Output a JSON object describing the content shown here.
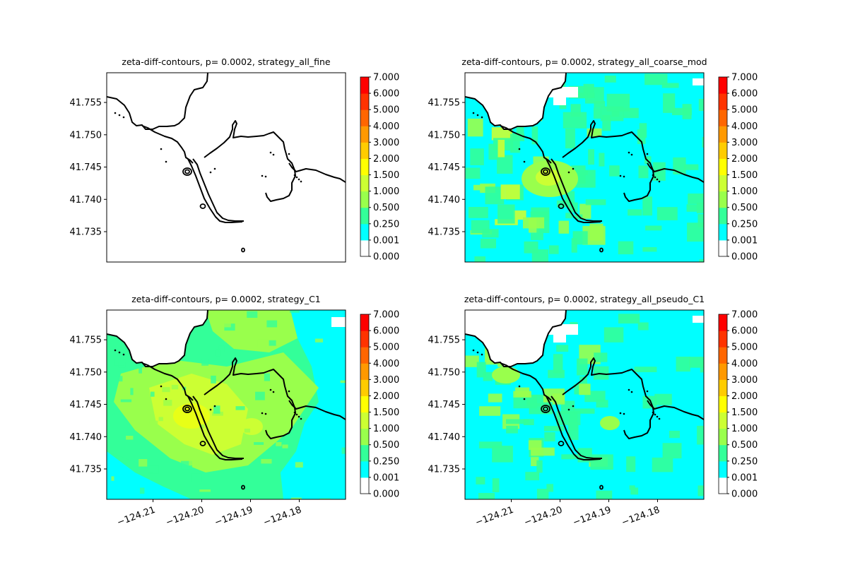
{
  "colors": {
    "levels": [
      "#ffffff",
      "#00ffff",
      "#33ff99",
      "#99ff4c",
      "#ccff33",
      "#ffff00",
      "#ffcc00",
      "#ff9900",
      "#ff6600",
      "#ff3300",
      "#ff0000"
    ],
    "coastline": "#000000",
    "axes": "#000000"
  },
  "chart_data": [
    {
      "type": "contour",
      "title": "zeta-diff-contours, p= 0.0002, strategy_all_fine",
      "xlim": [
        -124.2195,
        -124.1705
      ],
      "ylim": [
        41.7303,
        41.7596
      ],
      "x_ticks": [],
      "y_ticks": [
        "41.735",
        "41.740",
        "41.745",
        "41.750",
        "41.755"
      ],
      "fill": "none",
      "colorbar_ticks": [
        "0.000",
        "0.001",
        "0.250",
        "0.500",
        "1.000",
        "1.500",
        "2.000",
        "3.000",
        "4.000",
        "5.000",
        "6.000",
        "7.000"
      ]
    },
    {
      "type": "contour",
      "title": "zeta-diff-contours, p= 0.0002, strategy_all_coarse_mod",
      "xlim": [
        -124.2195,
        -124.1705
      ],
      "ylim": [
        41.7303,
        41.7596
      ],
      "x_ticks": [],
      "y_ticks": [
        "41.735",
        "41.740",
        "41.745",
        "41.750",
        "41.755"
      ],
      "fill": "coarse",
      "colorbar_ticks": [
        "0.000",
        "0.001",
        "0.250",
        "0.500",
        "1.000",
        "1.500",
        "2.000",
        "3.000",
        "4.000",
        "5.000",
        "6.000",
        "7.000"
      ]
    },
    {
      "type": "contour",
      "title": "zeta-diff-contours, p= 0.0002, strategy_C1",
      "xlim": [
        -124.2195,
        -124.1705
      ],
      "ylim": [
        41.7303,
        41.7596
      ],
      "x_ticks": [
        "−124.21",
        "−124.20",
        "−124.19",
        "−124.18"
      ],
      "y_ticks": [
        "41.735",
        "41.740",
        "41.745",
        "41.750",
        "41.755"
      ],
      "fill": "c1",
      "colorbar_ticks": [
        "0.000",
        "0.001",
        "0.250",
        "0.500",
        "1.000",
        "1.500",
        "2.000",
        "3.000",
        "4.000",
        "5.000",
        "6.000",
        "7.000"
      ]
    },
    {
      "type": "contour",
      "title": "zeta-diff-contours, p= 0.0002, strategy_all_pseudo_C1",
      "xlim": [
        -124.2195,
        -124.1705
      ],
      "ylim": [
        41.7303,
        41.7596
      ],
      "x_ticks": [
        "−124.21",
        "−124.20",
        "−124.19",
        "−124.18"
      ],
      "y_ticks": [
        "41.735",
        "41.740",
        "41.745",
        "41.750",
        "41.755"
      ],
      "fill": "pseudo",
      "colorbar_ticks": [
        "0.000",
        "0.001",
        "0.250",
        "0.500",
        "1.000",
        "1.500",
        "2.000",
        "3.000",
        "4.000",
        "5.000",
        "6.000",
        "7.000"
      ]
    }
  ]
}
